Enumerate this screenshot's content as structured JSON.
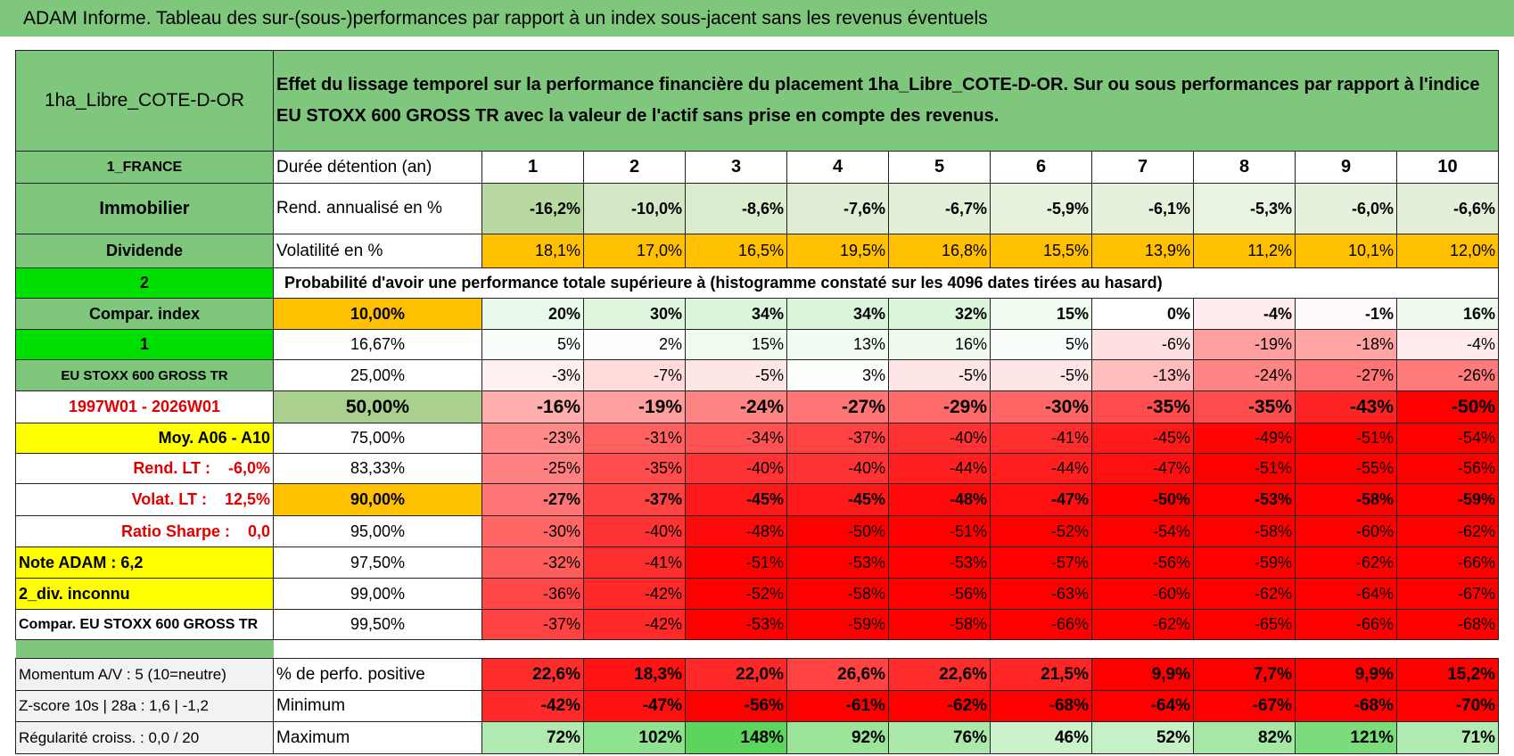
{
  "header": {
    "title": "ADAM Informe. Tableau des sur-(sous-)performances par rapport à un index sous-jacent sans les revenus éventuels"
  },
  "table": {
    "name": "1ha_Libre_COTE-D-OR",
    "description": "Effet du lissage temporel sur la performance financière du placement 1ha_Libre_COTE-D-OR. Sur ou sous performances par rapport à l'indice EU STOXX 600 GROSS TR avec la valeur de l'actif sans prise en compte des revenus.",
    "rows": [
      [
        "1_FRANCE",
        "Durée détention (an)",
        "1",
        "2",
        "3",
        "4",
        "5",
        "6",
        "7",
        "8",
        "9",
        "10"
      ],
      [
        "Immobilier",
        "Rend. annualisé en %",
        "-16,2%",
        "-10,0%",
        "-8,6%",
        "-7,6%",
        "-6,7%",
        "-5,9%",
        "-6,1%",
        "-5,3%",
        "-6,0%",
        "-6,6%"
      ],
      [
        "Dividende",
        "Volatilité en %",
        "18,1%",
        "17,0%",
        "16,5%",
        "19,5%",
        "16,8%",
        "15,5%",
        "13,9%",
        "11,2%",
        "10,1%",
        "12,0%"
      ],
      [
        "2",
        "Probabilité d'avoir une performance totale supérieure à (histogramme constaté sur les 4096 dates tirées au hasard)"
      ],
      [
        "Compar. index",
        "10,00%",
        "20%",
        "30%",
        "34%",
        "34%",
        "32%",
        "15%",
        "0%",
        "-4%",
        "-1%",
        "16%"
      ],
      [
        "1",
        "16,67%",
        "5%",
        "2%",
        "15%",
        "13%",
        "16%",
        "5%",
        "-6%",
        "-19%",
        "-18%",
        "-4%"
      ],
      [
        "EU STOXX 600 GROSS TR",
        "25,00%",
        "-3%",
        "-7%",
        "-5%",
        "3%",
        "-5%",
        "-5%",
        "-13%",
        "-24%",
        "-27%",
        "-26%"
      ],
      [
        "1997W01 - 2026W01",
        "50,00%",
        "-16%",
        "-19%",
        "-24%",
        "-27%",
        "-29%",
        "-30%",
        "-35%",
        "-35%",
        "-43%",
        "-50%"
      ],
      [
        "Moy. A06 - A10",
        "75,00%",
        "-23%",
        "-31%",
        "-34%",
        "-37%",
        "-40%",
        "-41%",
        "-45%",
        "-49%",
        "-51%",
        "-54%"
      ],
      [
        "Rend. LT :    -6,0%",
        "83,33%",
        "-25%",
        "-35%",
        "-40%",
        "-40%",
        "-44%",
        "-44%",
        "-47%",
        "-51%",
        "-55%",
        "-56%"
      ],
      [
        "Volat. LT :    12,5%",
        "90,00%",
        "-27%",
        "-37%",
        "-45%",
        "-45%",
        "-48%",
        "-47%",
        "-50%",
        "-53%",
        "-58%",
        "-59%"
      ],
      [
        "Ratio Sharpe :    0,0",
        "95,00%",
        "-30%",
        "-40%",
        "-48%",
        "-50%",
        "-51%",
        "-52%",
        "-54%",
        "-58%",
        "-60%",
        "-62%"
      ],
      [
        "Note ADAM : 6,2",
        "97,50%",
        "-32%",
        "-41%",
        "-51%",
        "-53%",
        "-53%",
        "-57%",
        "-56%",
        "-59%",
        "-62%",
        "-66%"
      ],
      [
        "2_div. inconnu",
        "99,00%",
        "-36%",
        "-42%",
        "-52%",
        "-58%",
        "-56%",
        "-63%",
        "-60%",
        "-62%",
        "-64%",
        "-67%"
      ],
      [
        "Compar. EU STOXX 600 GROSS TR",
        "99,50%",
        "-37%",
        "-42%",
        "-53%",
        "-59%",
        "-58%",
        "-66%",
        "-62%",
        "-65%",
        "-66%",
        "-68%"
      ]
    ],
    "summary_rows": [
      [
        "Momentum A/V : 5 (10=neutre)",
        "% de perfo. positive",
        "22,6%",
        "18,3%",
        "22,0%",
        "26,6%",
        "22,6%",
        "21,5%",
        "9,9%",
        "7,7%",
        "9,9%",
        "15,2%"
      ],
      [
        "Z-score 10s | 28a : 1,6 | -1,2",
        "Minimum",
        "-42%",
        "-47%",
        "-56%",
        "-61%",
        "-62%",
        "-68%",
        "-64%",
        "-67%",
        "-68%",
        "-70%"
      ],
      [
        "Régularité croiss. : 0,0 / 20",
        "Maximum",
        "72%",
        "102%",
        "148%",
        "92%",
        "76%",
        "46%",
        "52%",
        "82%",
        "121%",
        "71%"
      ]
    ]
  }
}
